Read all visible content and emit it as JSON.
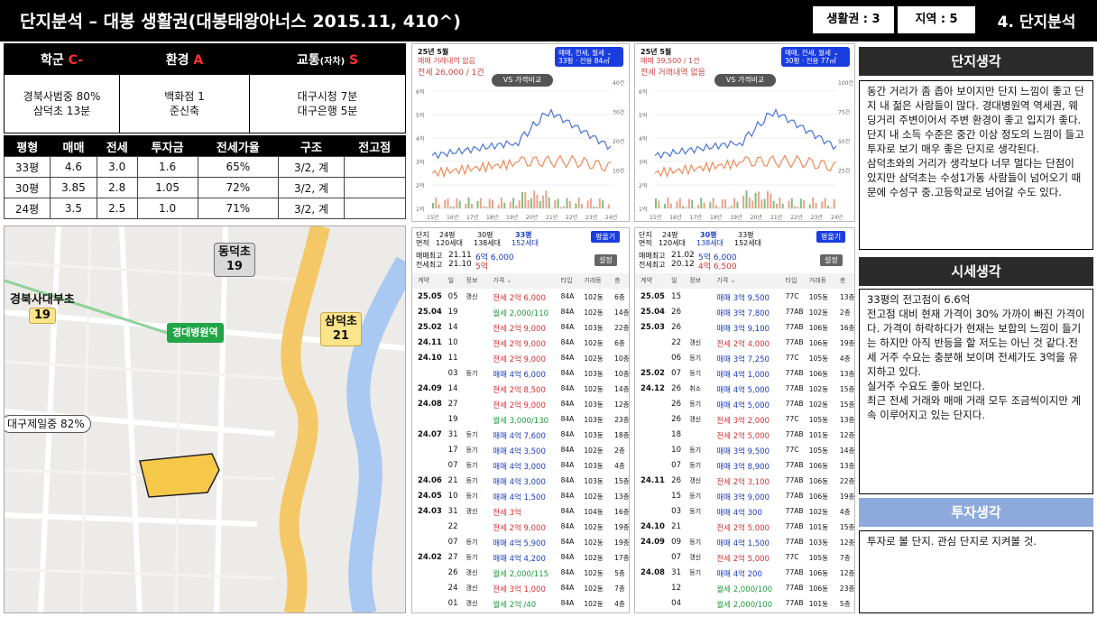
{
  "header": {
    "title": "단지분석 – 대봉 생활권(대봉태왕아너스 2015.11, 410^)",
    "zone_label": "생활권 : 3",
    "region_label": "지역 : 5",
    "section": "4. 단지분석"
  },
  "grades": {
    "school": {
      "label": "학군",
      "grade": "C-",
      "lines": [
        "경북사범중 80%",
        "삼덕초 13분"
      ]
    },
    "environment": {
      "label": "환경",
      "grade": "A",
      "lines": [
        "백화점 1",
        "준신축"
      ]
    },
    "traffic": {
      "label": "교통",
      "sub": "(자차)",
      "grade": "S",
      "lines": [
        "대구시청 7분",
        "대구은행 5분"
      ]
    }
  },
  "price_table": {
    "headers": [
      "평형",
      "매매",
      "전세",
      "투자금",
      "전세가율",
      "구조",
      "전고점"
    ],
    "rows": [
      [
        "33평",
        "4.6",
        "3.0",
        "1.6",
        "65%",
        "3/2, 계",
        ""
      ],
      [
        "30평",
        "3.85",
        "2.8",
        "1.05",
        "72%",
        "3/2, 계",
        ""
      ],
      [
        "24평",
        "3.5",
        "2.5",
        "1.0",
        "71%",
        "3/2, 계",
        ""
      ]
    ]
  },
  "map": {
    "labels": [
      {
        "name": "동덕초",
        "num": "19"
      },
      {
        "name": "경북사대부초",
        "num": "19"
      },
      {
        "name": "삼덕초",
        "num": "21"
      }
    ],
    "station": "경대병원역",
    "pill": "대구제일중 82%"
  },
  "charts": [
    {
      "month": "25년 5월",
      "sub": "매매 거래내역 없음",
      "big": "전세 26,000 / 1건",
      "sel_top": "매매, 전세, 월세 ⌄",
      "sel_bot": "33평 · 전용 84㎡",
      "vs": "VS 가격비교",
      "y_left": [
        "6억",
        "5억",
        "4억",
        "3억",
        "2억",
        "1억"
      ],
      "y_right": [
        "40건",
        "30건",
        "20건",
        "10건"
      ],
      "x": [
        "15년",
        "16년",
        "17년",
        "18년",
        "19년",
        "20년",
        "21년",
        "22년",
        "23년",
        "24년"
      ]
    },
    {
      "month": "25년 5월",
      "sub": "매매 39,500 / 1건",
      "big": "전세 거래내역 없음",
      "sel_top": "매매, 전세, 월세 ⌄",
      "sel_bot": "30평 · 전용 77㎡",
      "vs": "VS 가격비교",
      "y_left": [
        "6억",
        "5억",
        "4억",
        "3억",
        "2억",
        "1억"
      ],
      "y_right": [
        "100건",
        "75건",
        "50건",
        "25건"
      ],
      "x": [
        "15년",
        "16년",
        "17년",
        "18년",
        "19년",
        "20년",
        "21년",
        "22년",
        "23년",
        "24년"
      ]
    }
  ],
  "transactions": [
    {
      "tabs": [
        "24평",
        "30평",
        "33평"
      ],
      "tab_sub": [
        "120세대",
        "138세대",
        "152세대"
      ],
      "active": 2,
      "button": "평옮기",
      "label_type": "단지",
      "label_area": "면적",
      "max1_label": "매매최고",
      "max1_date": "21.11",
      "max1_val": "6억 6,000",
      "max2_label": "전세최고",
      "max2_date": "21.10",
      "max2_val": "5억",
      "setting": "설정",
      "cols": [
        "계약",
        "일",
        "정보",
        "가격 ⌄",
        "타입",
        "거래동",
        "층"
      ],
      "rows": [
        [
          "25.05",
          "05",
          "갱신",
          "전세 2억 6,000",
          "84A",
          "102동",
          "6층"
        ],
        [
          "25.04",
          "19",
          "",
          "월세 2,000/110",
          "84A",
          "102동",
          "14층"
        ],
        [
          "25.02",
          "14",
          "",
          "전세 2억 9,000",
          "84A",
          "103동",
          "22층"
        ],
        [
          "24.11",
          "10",
          "",
          "전세 2억 9,000",
          "84A",
          "102동",
          "6층"
        ],
        [
          "24.10",
          "11",
          "",
          "전세 2억 9,000",
          "84A",
          "102동",
          "10층"
        ],
        [
          "",
          "03",
          "등기",
          "매매 4억 6,000",
          "84A",
          "103동",
          "10층"
        ],
        [
          "24.09",
          "14",
          "",
          "전세 2억 8,500",
          "84A",
          "102동",
          "14층"
        ],
        [
          "24.08",
          "27",
          "",
          "전세 2억 9,000",
          "84A",
          "103동",
          "12층"
        ],
        [
          "",
          "19",
          "",
          "월세 3,000/130",
          "84A",
          "103동",
          "23층"
        ],
        [
          "24.07",
          "31",
          "등기",
          "매매 4억 7,600",
          "84A",
          "103동",
          "18층"
        ],
        [
          "",
          "17",
          "등기",
          "매매 4억 3,500",
          "84A",
          "102동",
          "2층"
        ],
        [
          "",
          "07",
          "등기",
          "매매 4억 3,000",
          "84A",
          "103동",
          "4층"
        ],
        [
          "24.06",
          "21",
          "등기",
          "매매 4억 3,000",
          "84A",
          "103동",
          "15층"
        ],
        [
          "24.05",
          "10",
          "등기",
          "매매 4억 1,500",
          "84A",
          "102동",
          "13층"
        ],
        [
          "24.03",
          "31",
          "갱신",
          "전세 3억",
          "84A",
          "104동",
          "16층"
        ],
        [
          "",
          "22",
          "",
          "전세 2억 9,000",
          "84A",
          "102동",
          "19층"
        ],
        [
          "",
          "07",
          "등기",
          "매매 4억 5,900",
          "84A",
          "102동",
          "19층"
        ],
        [
          "24.02",
          "27",
          "등기",
          "매매 4억 4,200",
          "84A",
          "102동",
          "17층"
        ],
        [
          "",
          "26",
          "갱신",
          "월세 2,000/115",
          "84A",
          "102동",
          "5층"
        ],
        [
          "",
          "24",
          "갱신",
          "전세 3억 1,000",
          "84A",
          "102동",
          "7층"
        ],
        [
          "",
          "01",
          "갱신",
          "월세 2억 /40",
          "84A",
          "102동",
          "4층"
        ]
      ]
    },
    {
      "tabs": [
        "24평",
        "30평",
        "33평"
      ],
      "tab_sub": [
        "120세대",
        "138세대",
        "152세대"
      ],
      "active": 1,
      "button": "평옮기",
      "label_type": "단지",
      "label_area": "면적",
      "max1_label": "매매최고",
      "max1_date": "21.02",
      "max1_val": "5억 6,000",
      "max2_label": "전세최고",
      "max2_date": "20.12",
      "max2_val": "4억 6,500",
      "setting": "설정",
      "cols": [
        "계약",
        "일",
        "정보",
        "가격 ⌄",
        "타입",
        "거래동",
        "층"
      ],
      "rows": [
        [
          "25.05",
          "15",
          "",
          "매매 3억 9,500",
          "77C",
          "105동",
          "13층"
        ],
        [
          "25.04",
          "26",
          "",
          "매매 3억 7,800",
          "77AB",
          "102동",
          "2층"
        ],
        [
          "25.03",
          "26",
          "",
          "매매 3억 9,100",
          "77AB",
          "106동",
          "16층"
        ],
        [
          "",
          "22",
          "갱신",
          "전세 2억 4,000",
          "77AB",
          "106동",
          "19층"
        ],
        [
          "",
          "06",
          "등기",
          "매매 3억 7,250",
          "77C",
          "105동",
          "4층"
        ],
        [
          "25.02",
          "07",
          "등기",
          "매매 4억 1,000",
          "77AB",
          "106동",
          "13층"
        ],
        [
          "24.12",
          "26",
          "취소",
          "매매 4억 5,000",
          "77AB",
          "102동",
          "15층"
        ],
        [
          "",
          "26",
          "등기",
          "매매 4억 5,000",
          "77AB",
          "102동",
          "15층"
        ],
        [
          "",
          "26",
          "갱신",
          "전세 3억 2,000",
          "77C",
          "105동",
          "13층"
        ],
        [
          "",
          "18",
          "",
          "전세 2억 5,000",
          "77AB",
          "101동",
          "12층"
        ],
        [
          "",
          "10",
          "등기",
          "매매 3억 9,500",
          "77C",
          "105동",
          "14층"
        ],
        [
          "",
          "07",
          "등기",
          "매매 3억 8,900",
          "77AB",
          "106동",
          "13층"
        ],
        [
          "24.11",
          "26",
          "갱신",
          "전세 2억 3,100",
          "77AB",
          "106동",
          "22층"
        ],
        [
          "",
          "15",
          "등기",
          "매매 3억 9,000",
          "77AB",
          "106동",
          "19층"
        ],
        [
          "",
          "03",
          "등기",
          "매매 4억 300",
          "77AB",
          "102동",
          "4층"
        ],
        [
          "24.10",
          "21",
          "",
          "전세 2억 5,000",
          "77AB",
          "101동",
          "15층"
        ],
        [
          "24.09",
          "09",
          "등기",
          "매매 4억 1,500",
          "77AB",
          "103동",
          "12층"
        ],
        [
          "",
          "07",
          "갱신",
          "전세 2억 5,000",
          "77C",
          "105동",
          "7층"
        ],
        [
          "24.08",
          "31",
          "등기",
          "매매 4억 200",
          "77AB",
          "106동",
          "12층"
        ],
        [
          "",
          "12",
          "",
          "월세 2,000/100",
          "77AB",
          "106동",
          "23층"
        ],
        [
          "",
          "04",
          "",
          "월세 2,000/100",
          "77AB",
          "101동",
          "5층"
        ]
      ]
    }
  ],
  "thoughts": {
    "complex_title": "단지생각",
    "complex_text": "동간 거리가 좀 좁아 보이지만 단지 느낌이 좋고 단지 내 젊은 사람들이 많다. 경대병원역 역세권, 웨딩거리 주변이어서 주변 환경이 좋고 입지가 좋다. 단지 내 소득 수준은 중간 이상 정도의 느낌이 들고 투자로 보기 매우 좋은 단지로 생각된다.\n삼덕초와의 거리가 생각보다 너무 멀다는 단점이 있지만 삼덕초는 수성1가동 사람들이 넘어오기 때문에 수성구 중.고등학교로 넘어갈 수도 있다.",
    "market_title": "시세생각",
    "market_text": "33평의 전고점이 6.6억\n전고점 대비 현재 가격이 30% 가까이 빠진 가격이다. 가격이 하락하다가 현재는 보합의 느낌이 들기는 하지만 아직 반등을 할 저도는 아닌 것 같다.전세 거주 수요는 충분해 보이며 전세가도 3억을 유지하고 있다.\n실거주 수요도 좋아 보인다.\n최근 전세 거래와 매매 거래 모두 조금씩이지만 계속 이루어지고 있는 단지다.",
    "invest_title": "투자생각",
    "invest_text": "투자로 볼 단지. 관심 단지로 지켜볼 것."
  },
  "colors": {
    "accent_blue": "#1a3de0",
    "sale_line": "#4a74d8",
    "jeonse_line": "#f08a5a",
    "header_bg": "#000000",
    "invest_bar": "#8ea9dc"
  }
}
